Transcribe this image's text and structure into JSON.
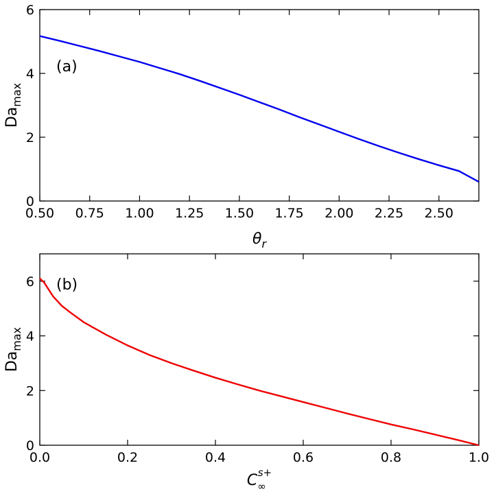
{
  "chart_data": [
    {
      "type": "line",
      "panel_label": "(a)",
      "xlabel": "θ_r",
      "ylabel": "Da_max",
      "xlim": [
        0.5,
        2.7
      ],
      "ylim": [
        0,
        6
      ],
      "xticks": [
        0.5,
        0.75,
        1.0,
        1.25,
        1.5,
        1.75,
        2.0,
        2.25,
        2.5
      ],
      "xtick_labels": [
        "0.50",
        "0.75",
        "1.00",
        "1.25",
        "1.50",
        "1.75",
        "2.00",
        "2.25",
        "2.50"
      ],
      "yticks": [
        0,
        2,
        4,
        6
      ],
      "ytick_labels": [
        "0",
        "2",
        "4",
        "6"
      ],
      "grid": false,
      "series": [
        {
          "color": "#0000ee",
          "x": [
            0.5,
            0.6,
            0.7,
            0.8,
            0.9,
            1.0,
            1.1,
            1.2,
            1.3,
            1.4,
            1.5,
            1.6,
            1.7,
            1.8,
            1.9,
            2.0,
            2.1,
            2.2,
            2.3,
            2.4,
            2.5,
            2.6,
            2.7
          ],
          "y": [
            5.17,
            5.02,
            4.86,
            4.7,
            4.53,
            4.36,
            4.17,
            3.98,
            3.77,
            3.55,
            3.33,
            3.1,
            2.87,
            2.63,
            2.4,
            2.17,
            1.94,
            1.72,
            1.51,
            1.31,
            1.12,
            0.94,
            0.6
          ]
        }
      ]
    },
    {
      "type": "line",
      "panel_label": "(b)",
      "xlabel": "C∞ s+",
      "ylabel": "Da_max",
      "xlim": [
        0.0,
        1.0
      ],
      "ylim": [
        0,
        7
      ],
      "xticks": [
        0.0,
        0.2,
        0.4,
        0.6,
        0.8,
        1.0
      ],
      "xtick_labels": [
        "0.0",
        "0.2",
        "0.4",
        "0.6",
        "0.8",
        "1.0"
      ],
      "yticks": [
        0,
        2,
        4,
        6
      ],
      "ytick_labels": [
        "0",
        "2",
        "4",
        "6"
      ],
      "grid": false,
      "series": [
        {
          "color": "#ee0000",
          "x": [
            0.0,
            0.01,
            0.02,
            0.03,
            0.05,
            0.07,
            0.1,
            0.15,
            0.2,
            0.25,
            0.3,
            0.35,
            0.4,
            0.45,
            0.5,
            0.55,
            0.6,
            0.65,
            0.7,
            0.75,
            0.8,
            0.85,
            0.9,
            0.95,
            1.0
          ],
          "y": [
            6.1,
            5.95,
            5.7,
            5.45,
            5.1,
            4.85,
            4.5,
            4.05,
            3.65,
            3.3,
            3.0,
            2.73,
            2.47,
            2.23,
            2.0,
            1.79,
            1.58,
            1.37,
            1.16,
            0.96,
            0.76,
            0.58,
            0.39,
            0.2,
            0.0
          ]
        }
      ]
    }
  ]
}
